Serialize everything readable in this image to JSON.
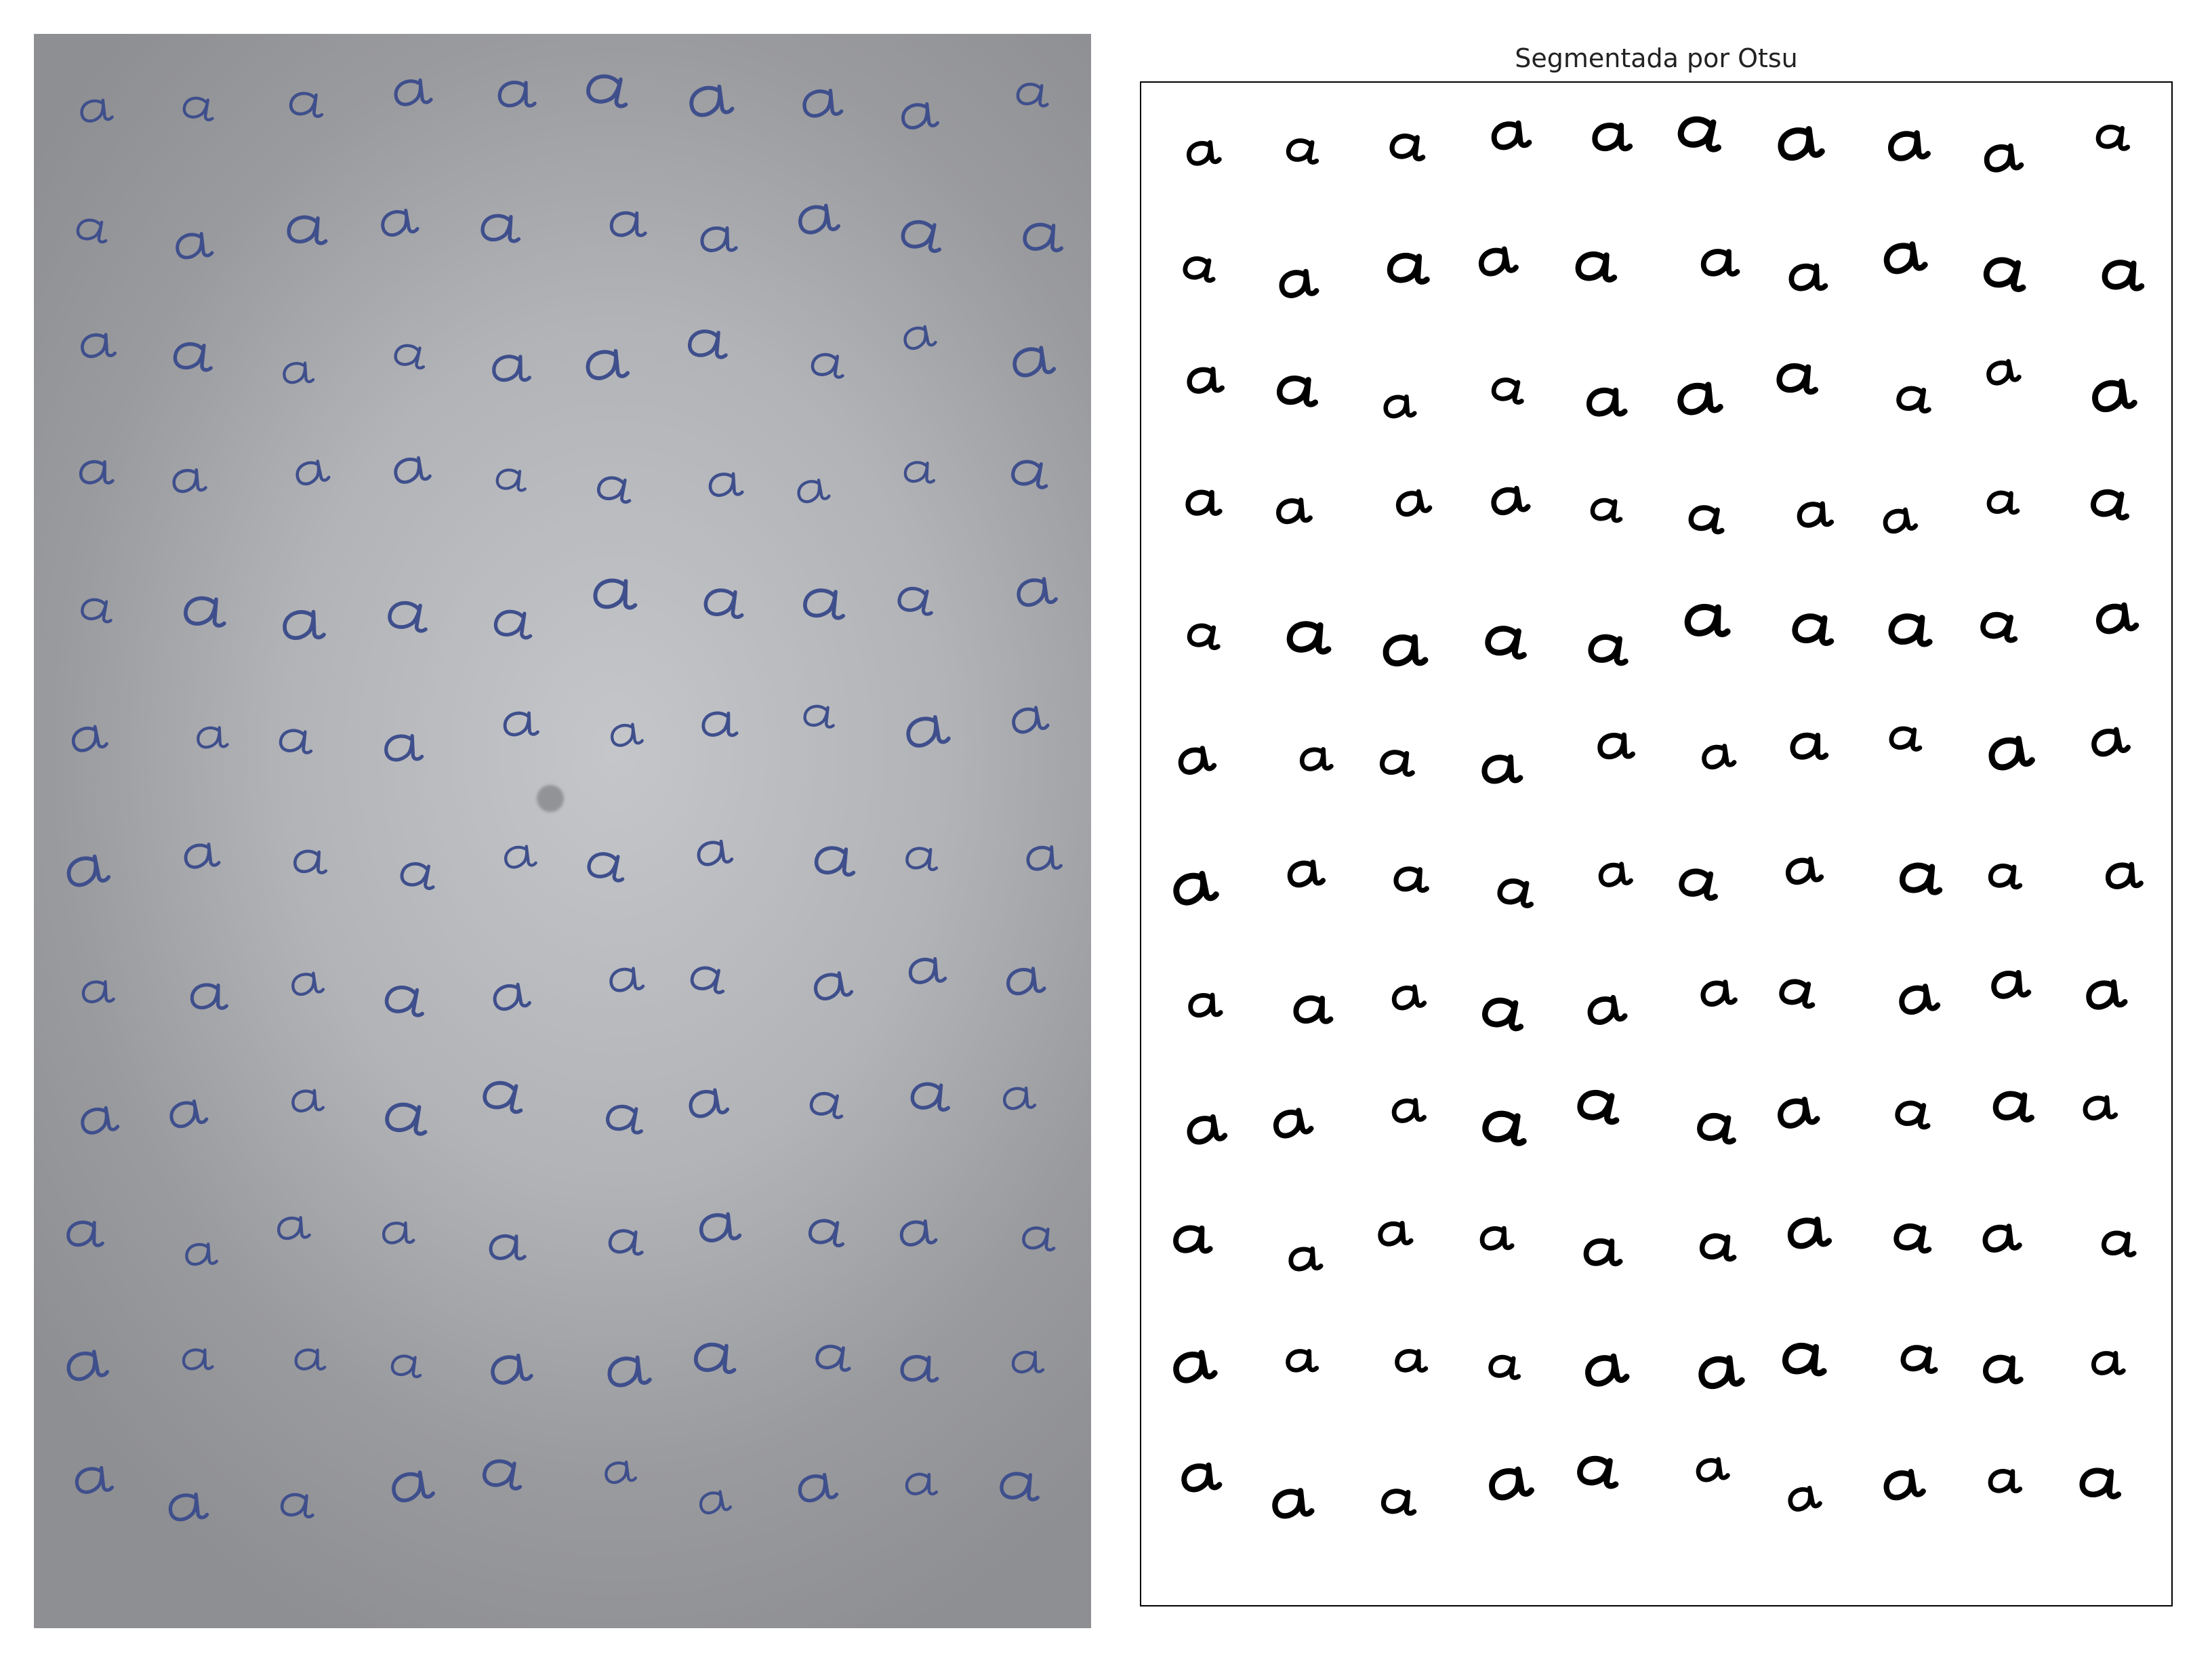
{
  "left_panel": {
    "subject": "photo of handwritten letters on paper"
  },
  "right_panel": {
    "title": "Segmentada por Otsu"
  },
  "glyph": {
    "char": "a"
  },
  "grid": {
    "rows": 12,
    "cols": 10
  },
  "colors": {
    "ink_blue": "#3f4f8c",
    "ink_black": "#000000",
    "paper_gray": "#b1b3b7",
    "panel_white": "#ffffff"
  }
}
